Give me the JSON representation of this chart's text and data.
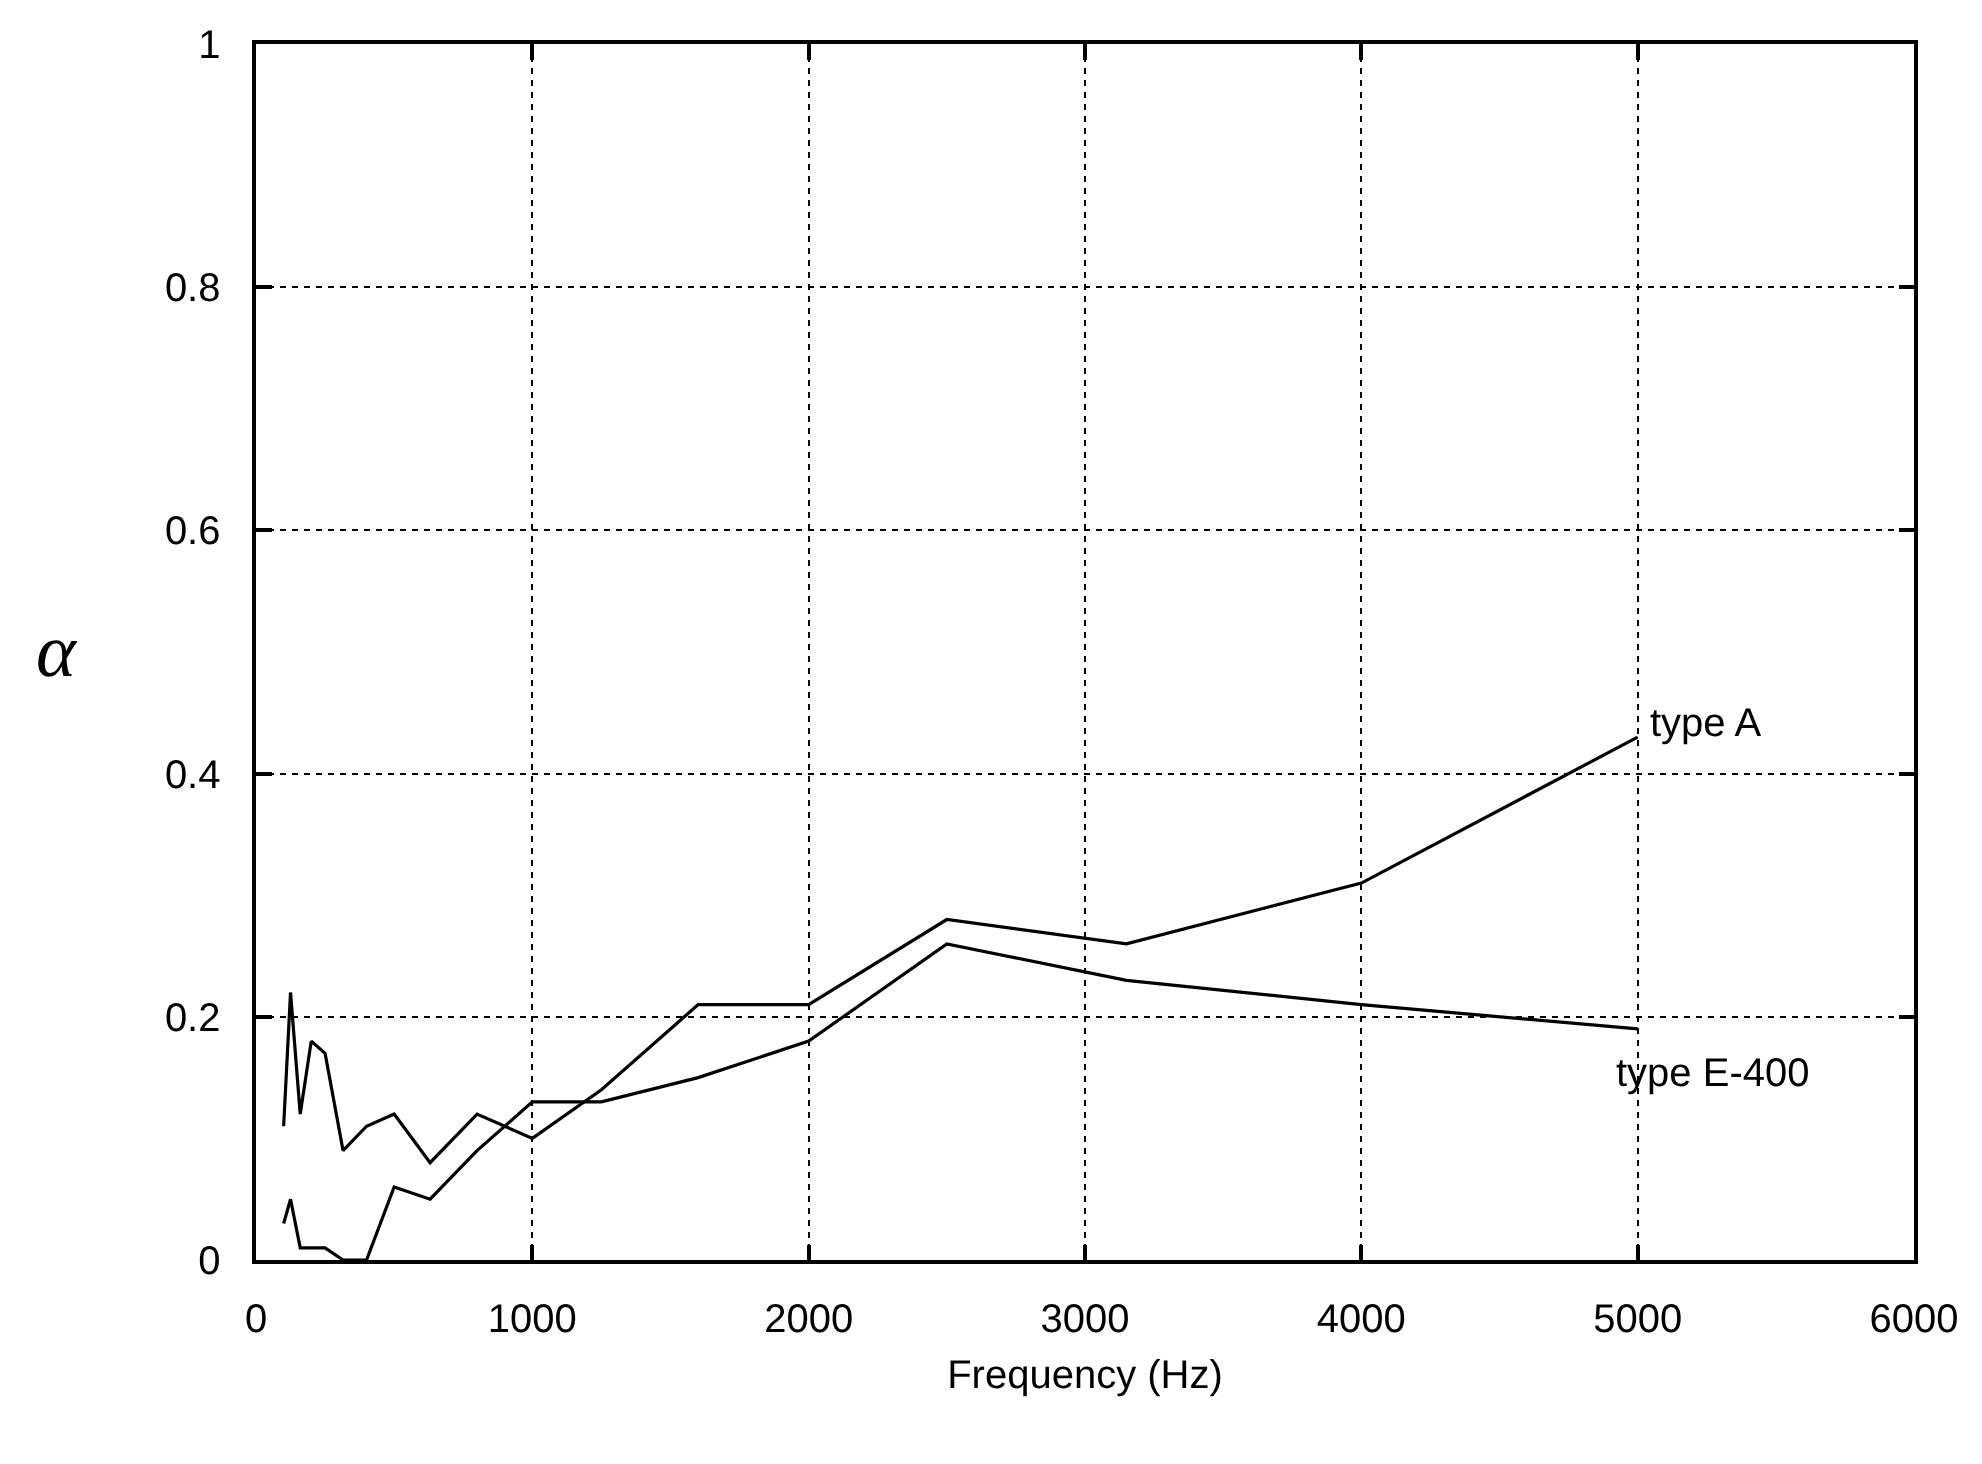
{
  "chart_data": {
    "type": "line",
    "xlabel": "Frequency (Hz)",
    "ylabel": "α",
    "x": [
      100,
      125,
      160,
      200,
      250,
      315,
      400,
      500,
      630,
      800,
      1000,
      1250,
      1600,
      2000,
      2500,
      3150,
      4000,
      5000
    ],
    "series": [
      {
        "name": "type A",
        "color": "#000000",
        "values": [
          0.11,
          0.22,
          0.12,
          0.18,
          0.17,
          0.09,
          0.11,
          0.12,
          0.08,
          0.12,
          0.1,
          0.14,
          0.21,
          0.21,
          0.28,
          0.26,
          0.31,
          0.43
        ]
      },
      {
        "name": "type E-400",
        "color": "#000000",
        "values": [
          0.03,
          0.05,
          0.01,
          0.01,
          0.01,
          0,
          0,
          0.06,
          0.05,
          0.09,
          0.13,
          0.13,
          0.15,
          0.18,
          0.26,
          0.23,
          0.21,
          0.19
        ]
      }
    ],
    "xlim": [
      0,
      6000
    ],
    "xticks": [
      0,
      1000,
      2000,
      3000,
      4000,
      5000,
      6000
    ],
    "ylim": [
      0,
      1
    ],
    "yticks": [
      0,
      0.2,
      0.4,
      0.6,
      0.8,
      1
    ],
    "grid": true,
    "legend": false,
    "line_style": "solid"
  }
}
